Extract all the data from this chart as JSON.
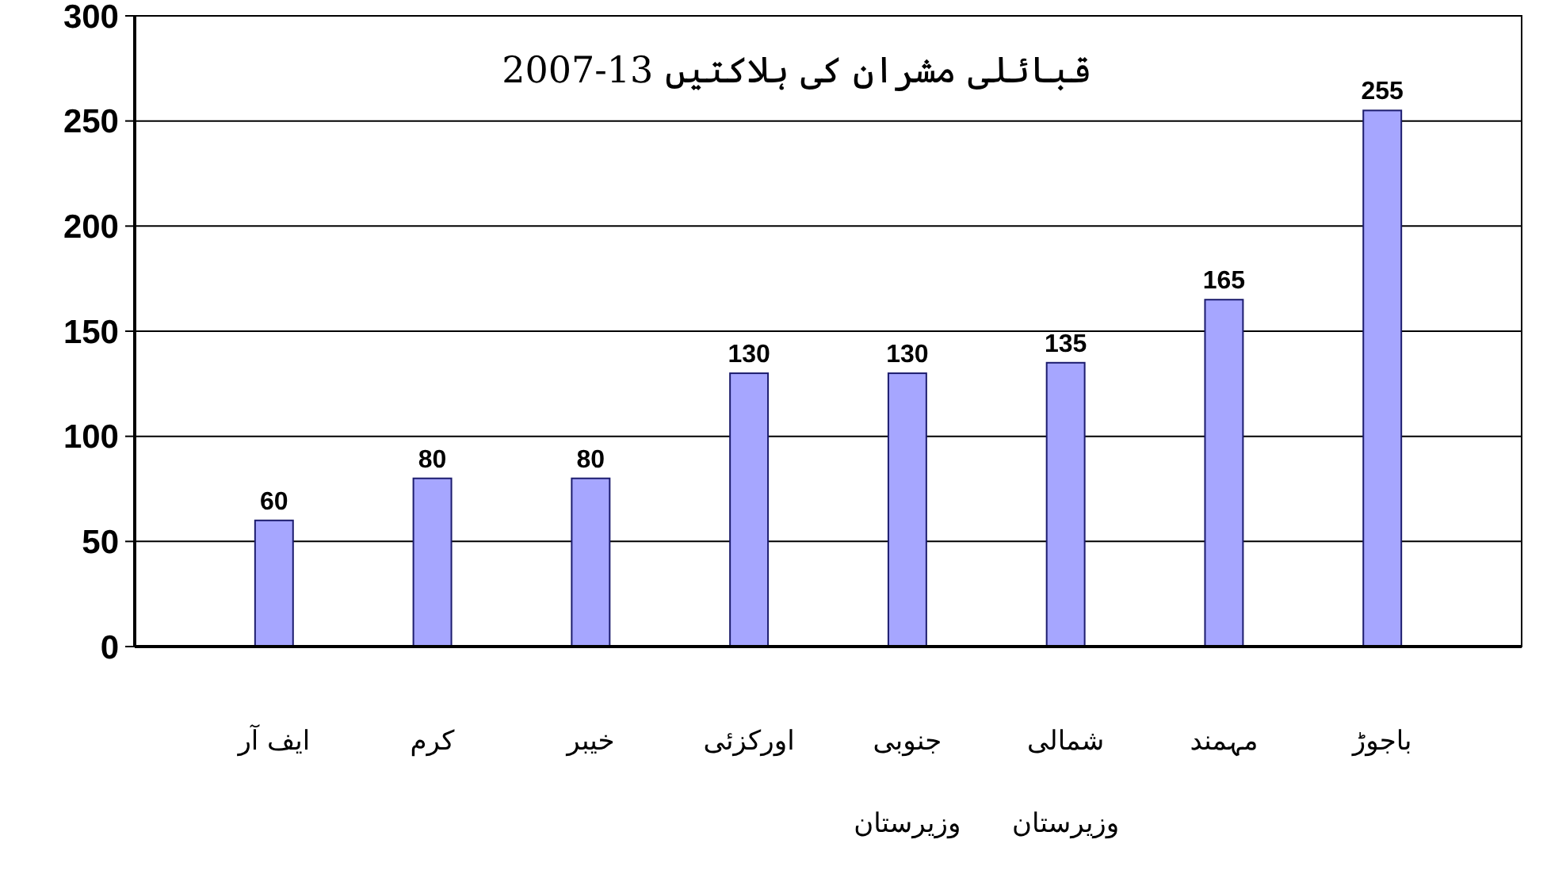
{
  "chart_data": {
    "type": "bar",
    "title": "قبائلی مشران کی ہلاکتیں 13-2007",
    "categories": [
      "ایف آر",
      "کرم",
      "خیبر",
      "اورکزئی",
      "جنوبی وزیرستان",
      "شمالی وزیرستان",
      "مہمند",
      "باجوڑ"
    ],
    "values": [
      60,
      80,
      80,
      130,
      130,
      135,
      165,
      255
    ],
    "color": "#a6a6ff",
    "ylim": [
      0,
      300
    ],
    "yticks": [
      0,
      50,
      100,
      150,
      200,
      250,
      300
    ],
    "grid": "y",
    "data_labels": true
  }
}
